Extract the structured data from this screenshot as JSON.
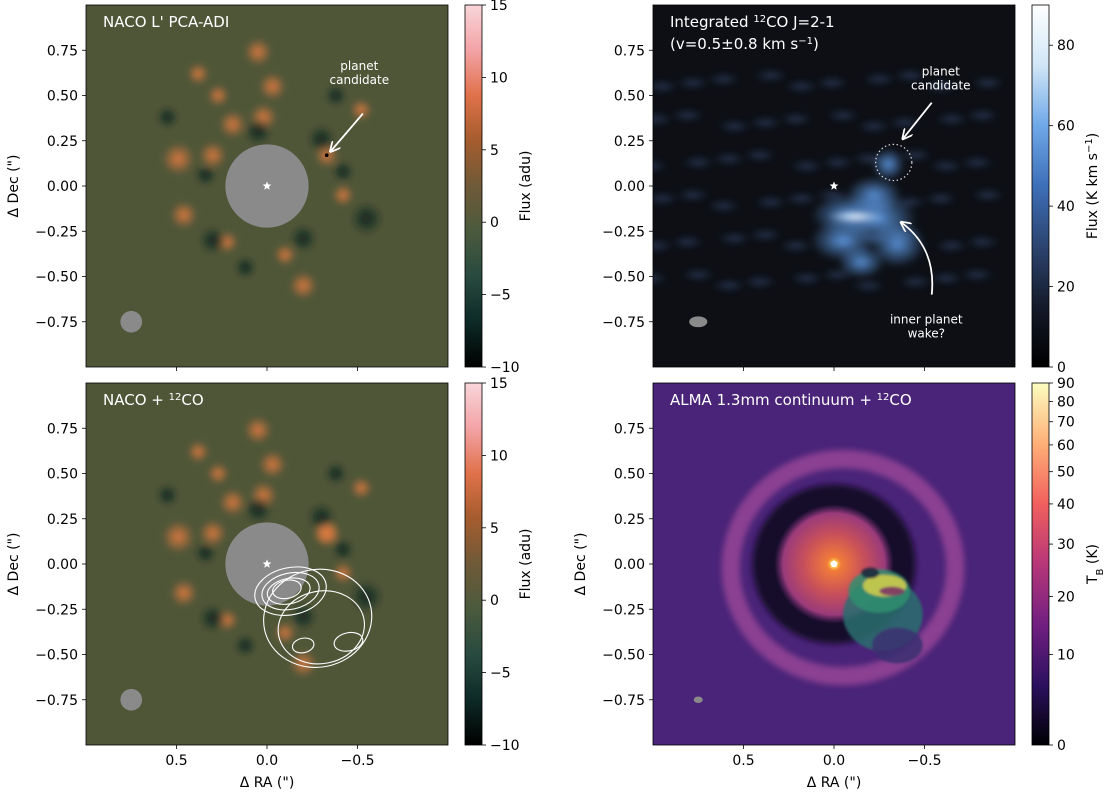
{
  "chart_data": [
    {
      "type": "heatmap",
      "title": "NACO L' PCA-ADI",
      "xlabel": "",
      "ylabel": "Δ Dec (\")",
      "xlim": [
        1.0,
        -1.0
      ],
      "ylim": [
        -1.0,
        1.0
      ],
      "x_ticks": [
        0.5,
        0.0,
        -0.5
      ],
      "y_ticks": [
        0.75,
        0.5,
        0.25,
        0.0,
        -0.25,
        -0.5,
        -0.75
      ],
      "colorbar": {
        "label": "Flux (adu)",
        "range": [
          -10,
          15
        ],
        "ticks": [
          15,
          10,
          5,
          0,
          -5,
          -10
        ]
      },
      "annotations": [
        {
          "text": "planet\ncandidate",
          "x": -0.33,
          "y": 0.17
        }
      ],
      "star": {
        "x": 0.0,
        "y": 0.0
      },
      "mask_radius": 0.23,
      "beam": {
        "x": 0.75,
        "y": -0.75
      }
    },
    {
      "type": "heatmap",
      "title": "Integrated ¹²CO J=2-1",
      "subtitle": "(v=0.5±0.8 km s⁻¹)",
      "xlabel": "",
      "ylabel": "",
      "xlim": [
        1.0,
        -1.0
      ],
      "ylim": [
        -1.0,
        1.0
      ],
      "x_ticks": [
        0.5,
        0.0,
        -0.5
      ],
      "y_ticks": [
        0.75,
        0.5,
        0.25,
        0.0,
        -0.25,
        -0.5,
        -0.75
      ],
      "colorbar": {
        "label": "Flux (K km s⁻¹)",
        "range": [
          0,
          90
        ],
        "ticks": [
          80,
          60,
          40,
          20,
          0
        ]
      },
      "annotations": [
        {
          "text": "planet\ncandidate",
          "x": -0.33,
          "y": 0.13
        },
        {
          "text": "inner planet\nwake?",
          "x": -0.35,
          "y": -0.2
        }
      ],
      "star": {
        "x": 0.0,
        "y": 0.0
      },
      "beam": {
        "x": 0.75,
        "y": -0.75
      }
    },
    {
      "type": "heatmap",
      "title": "NACO + ¹²CO",
      "xlabel": "Δ RA (\")",
      "ylabel": "Δ Dec (\")",
      "xlim": [
        1.0,
        -1.0
      ],
      "ylim": [
        -1.0,
        1.0
      ],
      "x_ticks": [
        0.5,
        0.0,
        -0.5
      ],
      "y_ticks": [
        0.75,
        0.5,
        0.25,
        0.0,
        -0.25,
        -0.5,
        -0.75
      ],
      "colorbar": {
        "label": "Flux (adu)",
        "range": [
          -10,
          15
        ],
        "ticks": [
          15,
          10,
          5,
          0,
          -5,
          -10
        ]
      },
      "star": {
        "x": 0.0,
        "y": 0.0
      },
      "mask_radius": 0.23,
      "beam": {
        "x": 0.75,
        "y": -0.75
      }
    },
    {
      "type": "heatmap",
      "title": "ALMA 1.3mm continuum + ¹²CO",
      "xlabel": "Δ RA (\")",
      "ylabel": "Δ Dec (\")",
      "xlim": [
        1.0,
        -1.0
      ],
      "ylim": [
        -1.0,
        1.0
      ],
      "x_ticks": [
        0.5,
        0.0,
        -0.5
      ],
      "y_ticks": [
        0.75,
        0.5,
        0.25,
        0.0,
        -0.25,
        -0.5,
        -0.75
      ],
      "colorbar": {
        "label": "T_B (K)",
        "range": [
          0,
          90
        ],
        "ticks": [
          90,
          80,
          70,
          60,
          50,
          40,
          30,
          20,
          10,
          0
        ],
        "tick_positions": [
          1.0,
          0.949,
          0.893,
          0.829,
          0.755,
          0.666,
          0.555,
          0.41,
          0.25,
          0.0
        ]
      },
      "star": {
        "x": 0.0,
        "y": 0.0
      },
      "beam": {
        "x": 0.75,
        "y": -0.75
      }
    }
  ],
  "colors": {
    "naco_colormap": [
      "#000000",
      "#0d2a26",
      "#284a3f",
      "#4b5a3d",
      "#6f5a38",
      "#a45c2e",
      "#e0714a",
      "#f3a3a6",
      "#f8d6da"
    ],
    "co_colormap": [
      "#000000",
      "#141a2a",
      "#2c4470",
      "#3d6fb8",
      "#6fa8e8",
      "#d0e6f6",
      "#ffffff"
    ],
    "continuum_colormap": [
      "#000004",
      "#2c115f",
      "#721f81",
      "#b73779",
      "#f1605d",
      "#feb078",
      "#fcfdbf"
    ],
    "mask": "#8a8a8a",
    "annotation": "#ffffff"
  }
}
